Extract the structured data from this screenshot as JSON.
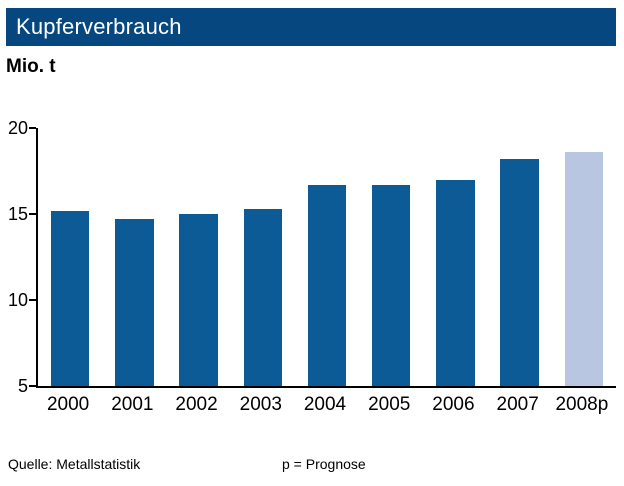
{
  "header": {
    "title": "Kupferverbrauch",
    "bg_color": "#05477e",
    "text_color": "#ffffff"
  },
  "chart_data": {
    "type": "bar",
    "title": "Kupferverbrauch",
    "unit_label": "Mio. t",
    "categories": [
      "2000",
      "2001",
      "2002",
      "2003",
      "2004",
      "2005",
      "2006",
      "2007",
      "2008p"
    ],
    "values": [
      15.2,
      14.7,
      15.0,
      15.3,
      16.7,
      16.7,
      17.0,
      18.2,
      18.6
    ],
    "xlabel": "",
    "ylabel": "Mio. t",
    "ylim": [
      5,
      20
    ],
    "yticks": [
      5,
      10,
      15,
      20
    ],
    "forecast_index": 8,
    "bar_color": "#0c5a96",
    "forecast_color": "#b9c6e2",
    "grid": false,
    "legend": "none"
  },
  "footer": {
    "source": "Quelle: Metallstatistik",
    "note": "p = Prognose"
  }
}
